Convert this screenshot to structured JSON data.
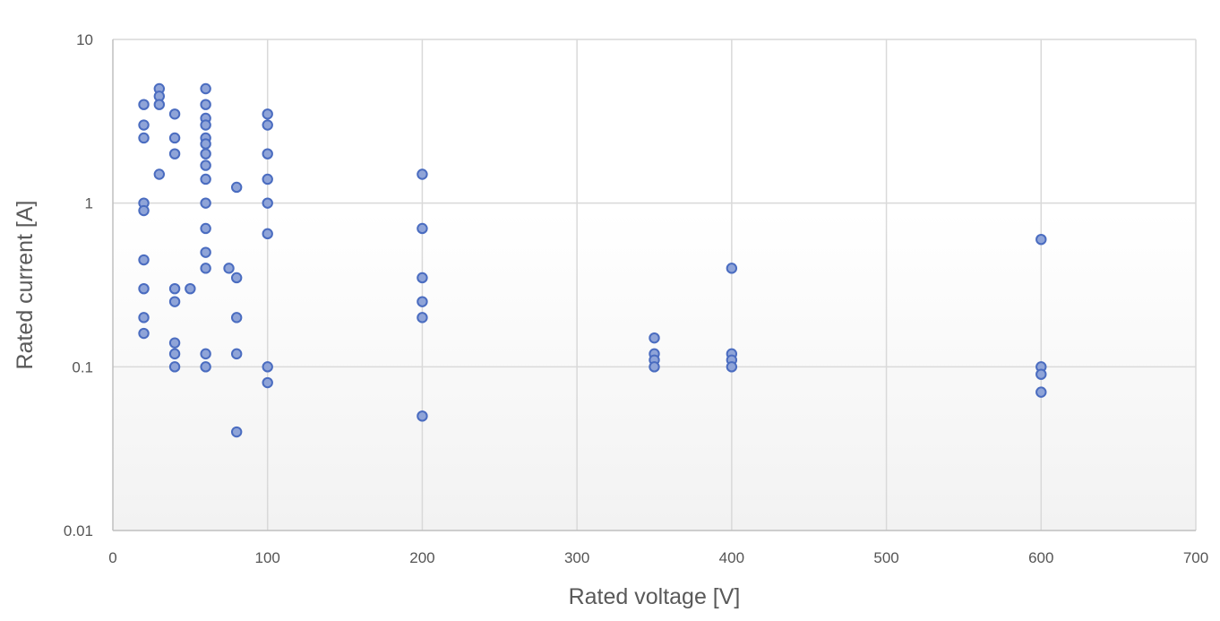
{
  "chart_data": {
    "type": "scatter",
    "title": "",
    "xlabel": "Rated voltage [V]",
    "ylabel": "Rated current [A]",
    "xlim": [
      0,
      700
    ],
    "ylim": [
      0.01,
      10
    ],
    "yscale": "log",
    "xticks": [
      0,
      100,
      200,
      300,
      400,
      500,
      600,
      700
    ],
    "yticks": [
      0.01,
      0.1,
      1,
      10
    ],
    "ytick_labels": [
      "0.01",
      "0.1",
      "1",
      "10"
    ],
    "grid": true,
    "legend": "none",
    "colors": {
      "marker_fill": "#8fa4d8",
      "marker_edge": "#4a6cc0",
      "grid": "#d9d9d9",
      "background_bottom": "#f2f2f2"
    },
    "series": [
      {
        "points": [
          [
            20,
            4
          ],
          [
            20,
            3
          ],
          [
            20,
            2.5
          ],
          [
            20,
            1
          ],
          [
            20,
            0.9
          ],
          [
            20,
            0.45
          ],
          [
            20,
            0.3
          ],
          [
            20,
            0.2
          ],
          [
            20,
            0.16
          ],
          [
            30,
            5
          ],
          [
            30,
            4.5
          ],
          [
            30,
            4
          ],
          [
            30,
            1.5
          ],
          [
            40,
            3.5
          ],
          [
            40,
            2.5
          ],
          [
            40,
            2
          ],
          [
            40,
            0.3
          ],
          [
            40,
            0.25
          ],
          [
            40,
            0.14
          ],
          [
            40,
            0.12
          ],
          [
            40,
            0.1
          ],
          [
            50,
            0.3
          ],
          [
            60,
            5
          ],
          [
            60,
            4
          ],
          [
            60,
            3.3
          ],
          [
            60,
            3
          ],
          [
            60,
            2.5
          ],
          [
            60,
            2.3
          ],
          [
            60,
            2
          ],
          [
            60,
            1.7
          ],
          [
            60,
            1.4
          ],
          [
            60,
            1
          ],
          [
            60,
            0.7
          ],
          [
            60,
            0.5
          ],
          [
            60,
            0.4
          ],
          [
            60,
            0.12
          ],
          [
            60,
            0.1
          ],
          [
            75,
            0.4
          ],
          [
            80,
            1.25
          ],
          [
            80,
            0.35
          ],
          [
            80,
            0.2
          ],
          [
            80,
            0.12
          ],
          [
            80,
            0.04
          ],
          [
            100,
            3.5
          ],
          [
            100,
            3
          ],
          [
            100,
            2
          ],
          [
            100,
            1.4
          ],
          [
            100,
            1
          ],
          [
            100,
            0.65
          ],
          [
            100,
            0.1
          ],
          [
            100,
            0.08
          ],
          [
            200,
            1.5
          ],
          [
            200,
            0.7
          ],
          [
            200,
            0.35
          ],
          [
            200,
            0.25
          ],
          [
            200,
            0.2
          ],
          [
            200,
            0.05
          ],
          [
            350,
            0.15
          ],
          [
            350,
            0.12
          ],
          [
            350,
            0.11
          ],
          [
            350,
            0.1
          ],
          [
            400,
            0.4
          ],
          [
            400,
            0.12
          ],
          [
            400,
            0.11
          ],
          [
            400,
            0.1
          ],
          [
            600,
            0.6
          ],
          [
            600,
            0.1
          ],
          [
            600,
            0.09
          ],
          [
            600,
            0.07
          ]
        ]
      }
    ]
  }
}
